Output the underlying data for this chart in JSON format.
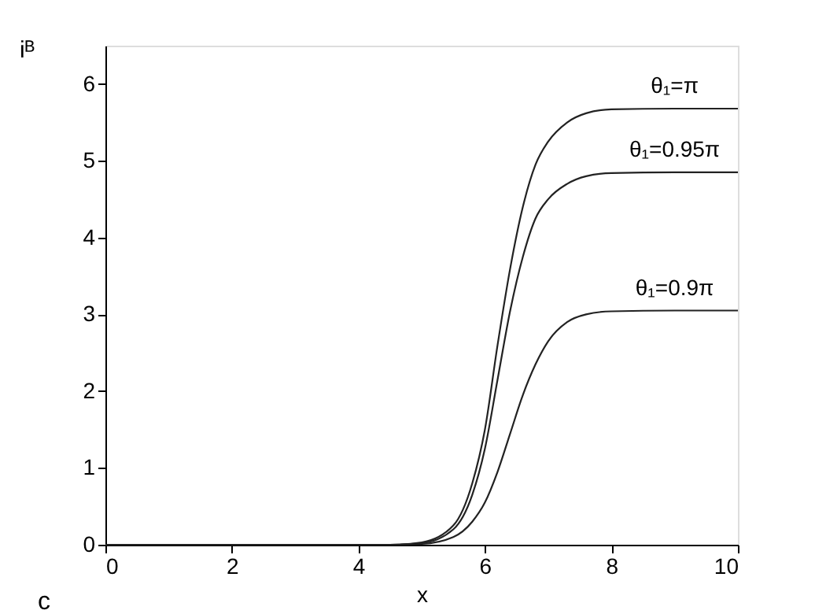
{
  "chart_data": {
    "type": "line",
    "xlabel": "x",
    "ylabel": "iᴮ",
    "x": [
      0,
      1,
      2,
      3,
      4,
      4.5,
      5,
      5.5,
      5.8,
      6,
      6.2,
      6.4,
      6.6,
      6.8,
      7,
      7.3,
      7.6,
      8,
      9,
      10
    ],
    "series": [
      {
        "name": "θ₁=π",
        "color": "#222222",
        "values": [
          0,
          0,
          0,
          0,
          0,
          0,
          0.03,
          0.25,
          0.8,
          1.5,
          2.6,
          3.6,
          4.4,
          4.95,
          5.25,
          5.5,
          5.62,
          5.67,
          5.68,
          5.68
        ]
      },
      {
        "name": "θ₁=0.95π",
        "color": "#222222",
        "values": [
          0,
          0,
          0,
          0,
          0,
          0,
          0.02,
          0.2,
          0.65,
          1.25,
          2.15,
          3.05,
          3.75,
          4.25,
          4.5,
          4.7,
          4.8,
          4.84,
          4.85,
          4.85
        ]
      },
      {
        "name": "θ₁=0.9π",
        "color": "#222222",
        "values": [
          0,
          0,
          0,
          0,
          0,
          0,
          0.01,
          0.1,
          0.3,
          0.55,
          0.95,
          1.45,
          1.95,
          2.35,
          2.65,
          2.9,
          3.0,
          3.04,
          3.05,
          3.05
        ]
      }
    ],
    "xlim": [
      0,
      10
    ],
    "xticks": [
      0,
      2,
      4,
      6,
      8,
      10
    ],
    "ylim": [
      0,
      6.5
    ],
    "yticks": [
      0,
      1,
      2,
      3,
      4,
      5,
      6
    ],
    "line_style": "solid",
    "marker": "none",
    "annotations": [
      "c"
    ]
  }
}
